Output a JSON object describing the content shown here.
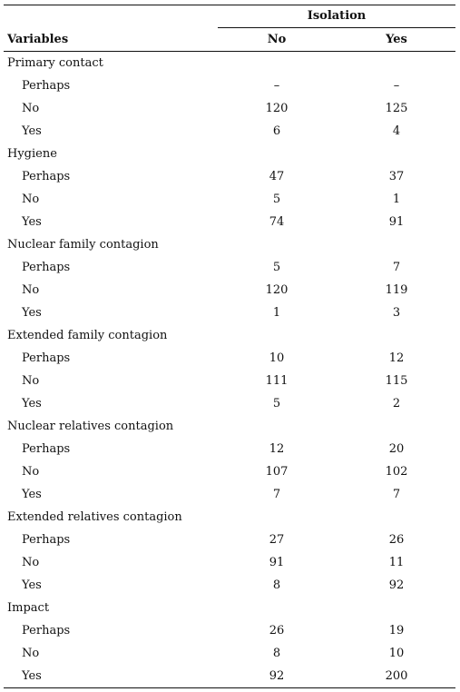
{
  "table": {
    "header": {
      "group": "Isolation",
      "columns": [
        "Variables",
        "No",
        "Yes"
      ]
    },
    "groups": [
      {
        "label": "Primary contact",
        "rows": [
          [
            "Perhaps",
            "–",
            "–"
          ],
          [
            "No",
            120,
            125
          ],
          [
            "Yes",
            6,
            4
          ]
        ]
      },
      {
        "label": "Hygiene",
        "rows": [
          [
            "Perhaps",
            47,
            37
          ],
          [
            "No",
            5,
            1
          ],
          [
            "Yes",
            74,
            91
          ]
        ]
      },
      {
        "label": "Nuclear family contagion",
        "rows": [
          [
            "Perhaps",
            5,
            7
          ],
          [
            "No",
            120,
            119
          ],
          [
            "Yes",
            1,
            3
          ]
        ]
      },
      {
        "label": "Extended family contagion",
        "rows": [
          [
            "Perhaps",
            10,
            12
          ],
          [
            "No",
            111,
            115
          ],
          [
            "Yes",
            5,
            2
          ]
        ]
      },
      {
        "label": "Nuclear relatives contagion",
        "rows": [
          [
            "Perhaps",
            12,
            20
          ],
          [
            "No",
            107,
            102
          ],
          [
            "Yes",
            7,
            7
          ]
        ]
      },
      {
        "label": "Extended relatives contagion",
        "rows": [
          [
            "Perhaps",
            27,
            26
          ],
          [
            "No",
            91,
            11
          ],
          [
            "Yes",
            8,
            92
          ]
        ]
      },
      {
        "label": "Impact",
        "rows": [
          [
            "Perhaps",
            26,
            19
          ],
          [
            "No",
            8,
            10
          ],
          [
            "Yes",
            92,
            200
          ]
        ]
      }
    ]
  }
}
